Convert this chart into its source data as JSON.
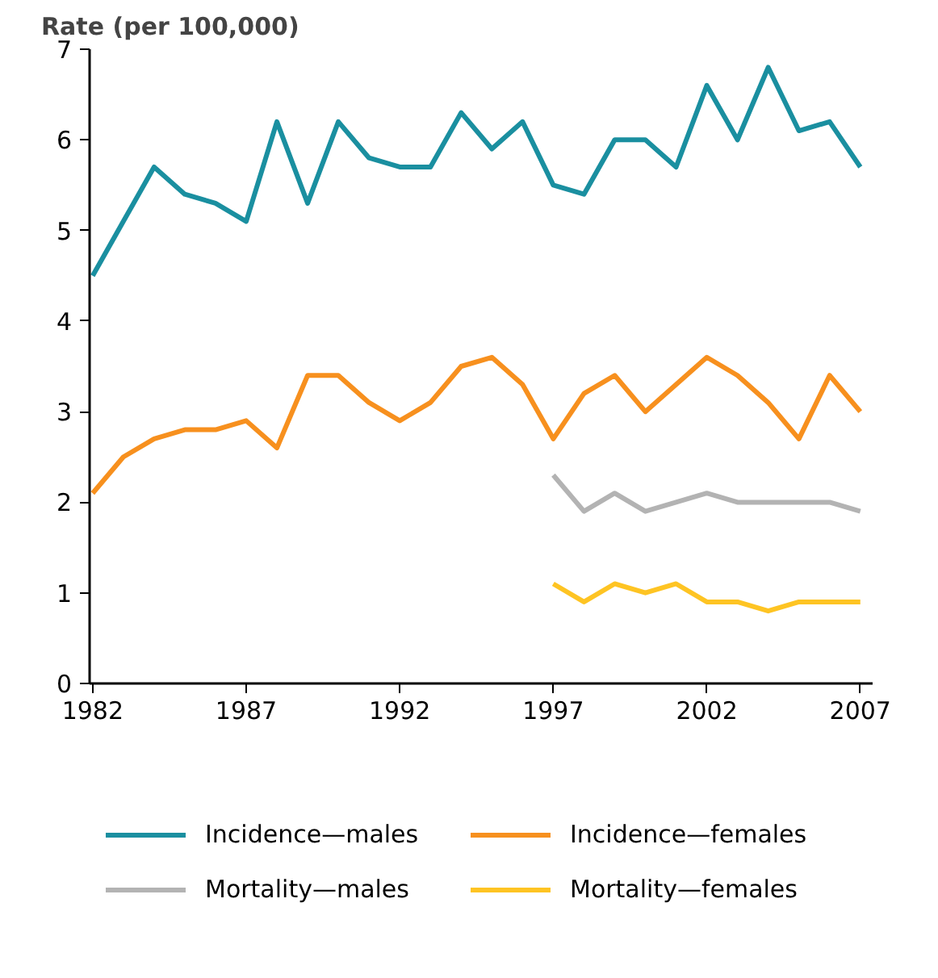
{
  "chart_data": {
    "type": "line",
    "ylabel": "Rate (per 100,000)",
    "x": [
      1982,
      1983,
      1984,
      1985,
      1986,
      1987,
      1988,
      1989,
      1990,
      1991,
      1992,
      1993,
      1994,
      1995,
      1996,
      1997,
      1998,
      1999,
      2000,
      2001,
      2002,
      2003,
      2004,
      2005,
      2006,
      2007
    ],
    "series": [
      {
        "name": "Incidence—males",
        "color": "#1a8fa0",
        "values": [
          4.5,
          5.1,
          5.7,
          5.4,
          5.3,
          5.1,
          6.2,
          5.3,
          6.2,
          5.8,
          5.7,
          5.7,
          6.3,
          5.9,
          6.2,
          5.5,
          5.4,
          6.0,
          6.0,
          5.7,
          6.6,
          6.0,
          6.8,
          6.1,
          6.2,
          5.7
        ]
      },
      {
        "name": "Incidence—females",
        "color": "#f7901e",
        "values": [
          2.1,
          2.5,
          2.7,
          2.8,
          2.8,
          2.9,
          2.6,
          3.4,
          3.4,
          3.1,
          2.9,
          3.1,
          3.5,
          3.6,
          3.3,
          2.7,
          3.2,
          3.4,
          3.0,
          3.3,
          3.6,
          3.4,
          3.1,
          2.7,
          3.4,
          3.0
        ]
      },
      {
        "name": "Mortality—males",
        "color": "#b3b3b3",
        "values": [
          null,
          null,
          null,
          null,
          null,
          null,
          null,
          null,
          null,
          null,
          null,
          null,
          null,
          null,
          null,
          2.3,
          1.9,
          2.1,
          1.9,
          2.0,
          2.1,
          2.0,
          2.0,
          2.0,
          2.0,
          1.9
        ]
      },
      {
        "name": "Mortality—females",
        "color": "#fec423",
        "values": [
          null,
          null,
          null,
          null,
          null,
          null,
          null,
          null,
          null,
          null,
          null,
          null,
          null,
          null,
          null,
          1.1,
          0.9,
          1.1,
          1.0,
          1.1,
          0.9,
          0.9,
          0.8,
          0.9,
          0.9,
          0.9
        ]
      }
    ],
    "xlim": [
      1981.9,
      2007.4
    ],
    "xticks": [
      1982,
      1987,
      1992,
      1997,
      2002,
      2007
    ],
    "ylim": [
      0,
      7
    ],
    "yticks": [
      0,
      1,
      2,
      3,
      4,
      5,
      6,
      7
    ],
    "grid": false,
    "legend": "bottom",
    "marker": "none",
    "line_style": "solid"
  }
}
